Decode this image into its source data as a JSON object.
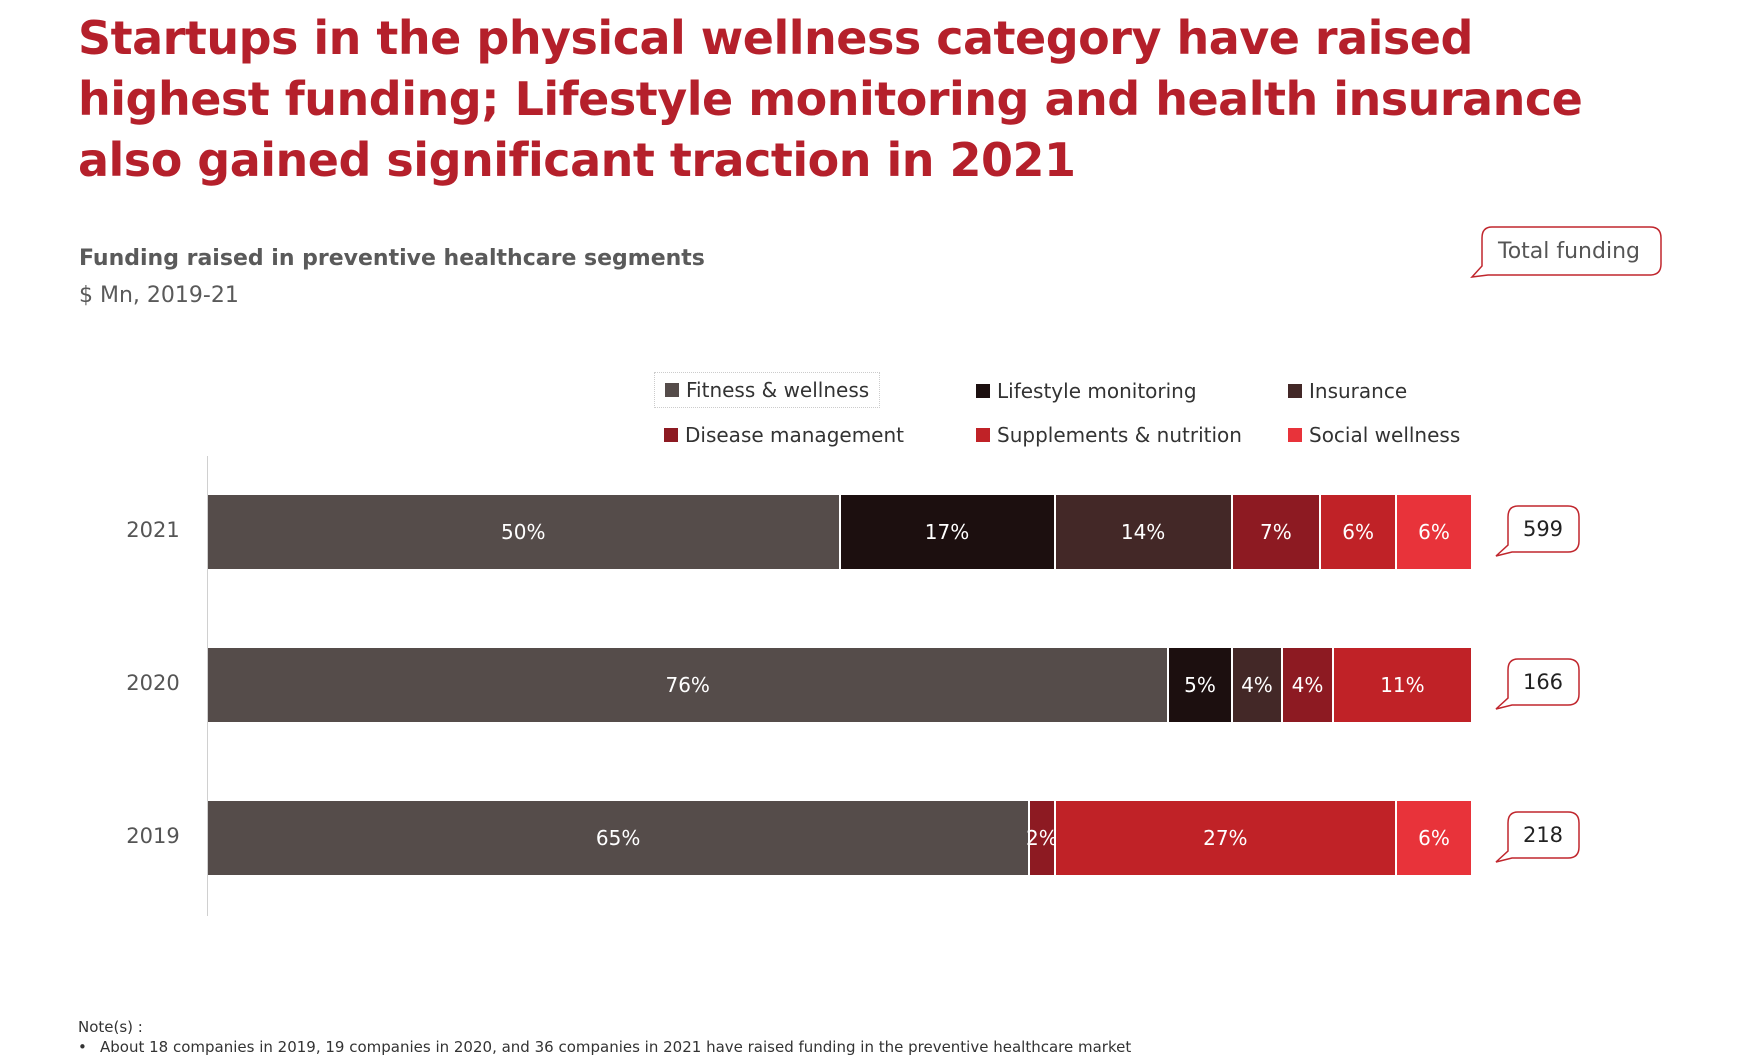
{
  "title": "Startups in the physical wellness category have raised highest funding; Lifestyle monitoring and health insurance also gained significant traction in 2021",
  "subtitle": "Funding raised in preventive healthcare segments",
  "unit": "$ Mn, 2019-21",
  "total_funding_label": "Total funding",
  "chart_data": {
    "type": "bar",
    "orientation": "horizontal",
    "stacked": true,
    "normalized": true,
    "categories": [
      "2021",
      "2020",
      "2019"
    ],
    "series": [
      {
        "name": "Fitness & wellness",
        "color": "#554c4a",
        "values": [
          50,
          76,
          65
        ],
        "labels": [
          "50%",
          "76%",
          "65%"
        ]
      },
      {
        "name": "Lifestyle monitoring",
        "color": "#1c0f0f",
        "values": [
          17,
          5,
          0
        ],
        "labels": [
          "17%",
          "5%",
          ""
        ]
      },
      {
        "name": "Insurance",
        "color": "#432827",
        "values": [
          14,
          4,
          0
        ],
        "labels": [
          "14%",
          "4%",
          ""
        ]
      },
      {
        "name": "Disease management",
        "color": "#8d1a22",
        "values": [
          7,
          4,
          2
        ],
        "labels": [
          "7%",
          "4%",
          "2%"
        ]
      },
      {
        "name": "Supplements & nutrition",
        "color": "#c02227",
        "values": [
          6,
          11,
          27
        ],
        "labels": [
          "6%",
          "11%",
          "27%"
        ]
      },
      {
        "name": "Social wellness",
        "color": "#e8333a",
        "values": [
          6,
          0,
          6
        ],
        "labels": [
          "6%",
          "",
          "6%"
        ]
      }
    ],
    "totals": [
      {
        "year": "2021",
        "value": "599"
      },
      {
        "year": "2020",
        "value": "166"
      },
      {
        "year": "2019",
        "value": "218"
      }
    ],
    "legend_position": "top",
    "xlim": [
      0,
      100
    ]
  },
  "notes": {
    "title": "Note(s) :",
    "items": [
      "About 18 companies in 2019, 19 companies in 2020, and 36 companies in 2021 have raised funding in the preventive healthcare market"
    ]
  }
}
